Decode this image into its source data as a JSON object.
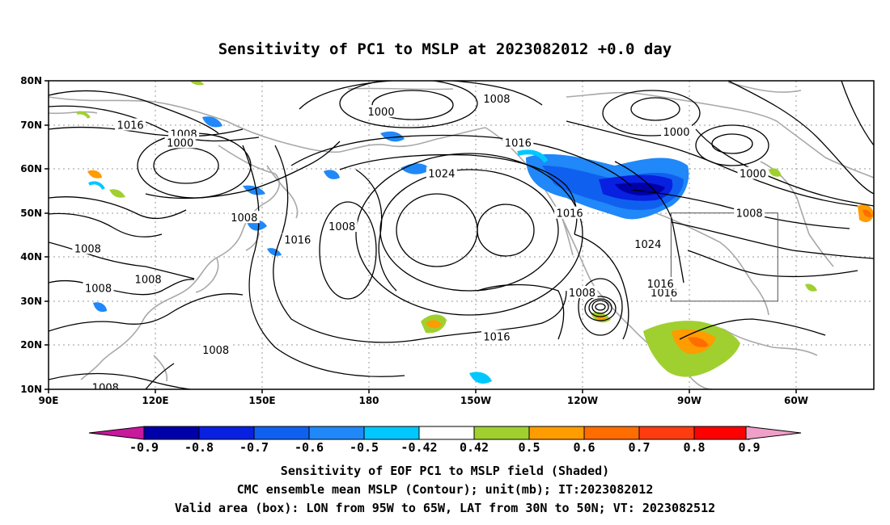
{
  "title": "Sensitivity of PC1 to MSLP at 2023082012 +0.0 day",
  "map": {
    "lat_labels": [
      "80N",
      "70N",
      "60N",
      "50N",
      "40N",
      "30N",
      "20N",
      "10N"
    ],
    "lon_labels": [
      "90E",
      "120E",
      "150E",
      "180",
      "150W",
      "120W",
      "90W",
      "60W"
    ],
    "extent": {
      "lon_min": 90,
      "lon_max": 322,
      "lat_min": 10,
      "lat_max": 80
    },
    "contour_labels": [
      {
        "text": "1016",
        "lon": 113,
        "lat": 70
      },
      {
        "text": "1008",
        "lon": 128,
        "lat": 68
      },
      {
        "text": "1000",
        "lon": 127,
        "lat": 66
      },
      {
        "text": "1000",
        "lon": 183.5,
        "lat": 73
      },
      {
        "text": "1008",
        "lon": 216,
        "lat": 76
      },
      {
        "text": "1016",
        "lon": 222,
        "lat": 66
      },
      {
        "text": "1024",
        "lon": 200.5,
        "lat": 59
      },
      {
        "text": "1000",
        "lon": 266.5,
        "lat": 68.5
      },
      {
        "text": "1000",
        "lon": 288,
        "lat": 59
      },
      {
        "text": "1008",
        "lon": 287,
        "lat": 50
      },
      {
        "text": "1016",
        "lon": 236.5,
        "lat": 50
      },
      {
        "text": "1024",
        "lon": 258.5,
        "lat": 43
      },
      {
        "text": "1016",
        "lon": 263,
        "lat": 32
      },
      {
        "text": "1016",
        "lon": 262,
        "lat": 34
      },
      {
        "text": "1016",
        "lon": 160,
        "lat": 44
      },
      {
        "text": "1008",
        "lon": 172.5,
        "lat": 47
      },
      {
        "text": "1008",
        "lon": 145,
        "lat": 49
      },
      {
        "text": "1008",
        "lon": 101,
        "lat": 42
      },
      {
        "text": "1008",
        "lon": 104,
        "lat": 33
      },
      {
        "text": "1008",
        "lon": 118,
        "lat": 35
      },
      {
        "text": "1008",
        "lon": 240,
        "lat": 32
      },
      {
        "text": "1016",
        "lon": 216,
        "lat": 22
      },
      {
        "text": "1008",
        "lon": 137,
        "lat": 19
      },
      {
        "text": "1008",
        "lon": 106,
        "lat": 10.5
      }
    ],
    "valid_box": {
      "lon_min": 265,
      "lon_max": 295,
      "lat_min": 30,
      "lat_max": 50
    }
  },
  "colorbar": {
    "ticks": [
      "-0.9",
      "-0.8",
      "-0.7",
      "-0.6",
      "-0.5",
      "-0.42",
      "0.42",
      "0.5",
      "0.6",
      "0.7",
      "0.8",
      "0.9"
    ],
    "colors": [
      "#0000a8",
      "#0820e0",
      "#1060f0",
      "#2088f8",
      "#00c8ff",
      "#ffffff",
      "#a0d030",
      "#ff9c00",
      "#ff6c00",
      "#ff3c10",
      "#ff0000"
    ],
    "low_end_color": "#c8189c",
    "high_end_color": "#f0a0c8"
  },
  "footer": {
    "line1": "Sensitivity of EOF PC1 to MSLP field (Shaded)",
    "line2": "CMC ensemble mean MSLP (Contour); unit(mb); IT:2023082012",
    "line3": "Valid area (box): LON from 95W to 65W, LAT from 30N to 50N; VT: 2023082512"
  }
}
